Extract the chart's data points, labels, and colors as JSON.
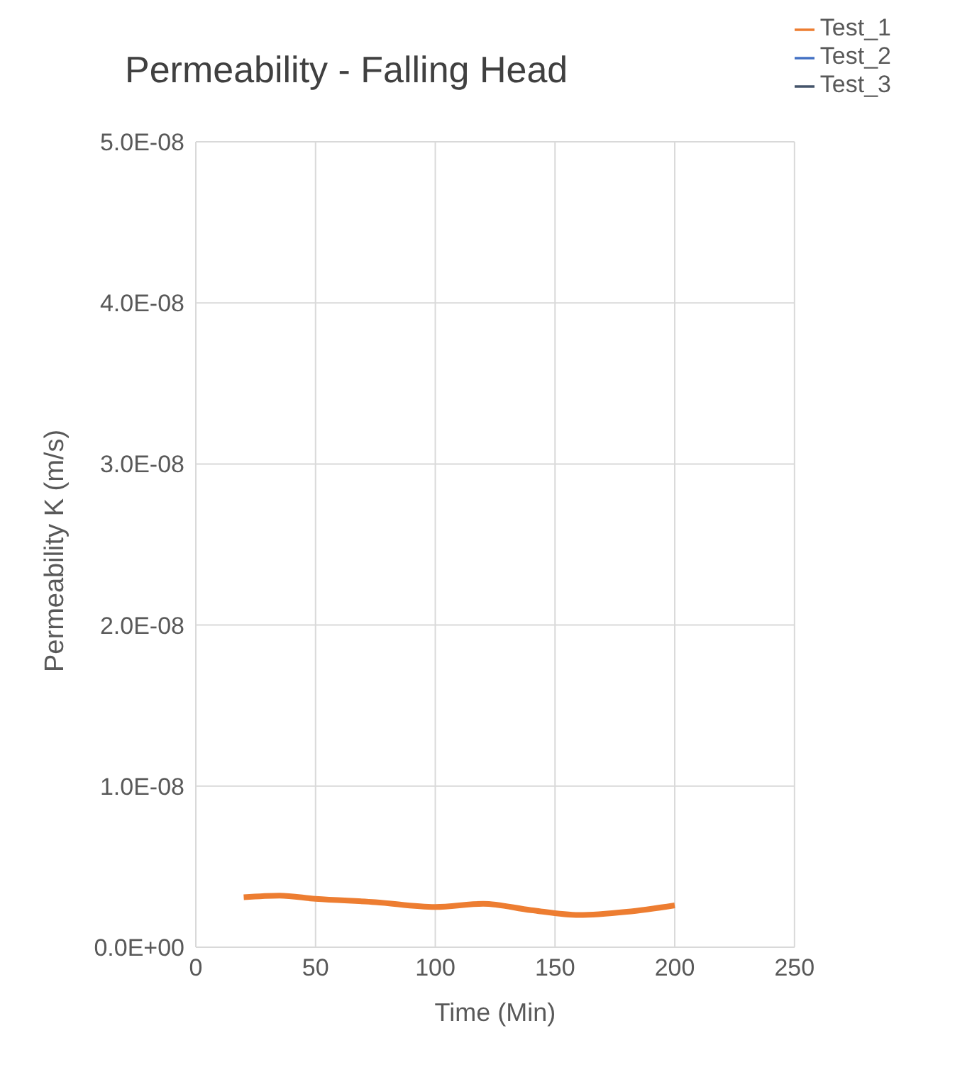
{
  "chart_data": {
    "type": "line",
    "title": "Permeability - Falling Head",
    "xlabel": "Time (Min)",
    "ylabel": "Permeability K (m/s)",
    "x": [
      20,
      35,
      50,
      75,
      100,
      120,
      140,
      160,
      180,
      200
    ],
    "series": [
      {
        "name": "Test_1",
        "color": "#ed7d31",
        "values": [
          3.1e-09,
          3.2e-09,
          3e-09,
          2.8e-09,
          2.5e-09,
          2.7e-09,
          2.3e-09,
          2e-09,
          2.2e-09,
          2.6e-09
        ]
      },
      {
        "name": "Test_2",
        "color": "#4472c4",
        "values": [
          null,
          null,
          null,
          null,
          null,
          null,
          null,
          null,
          null,
          null
        ]
      },
      {
        "name": "Test_3",
        "color": "#44546a",
        "values": [
          null,
          null,
          null,
          null,
          null,
          null,
          null,
          null,
          null,
          null
        ]
      }
    ],
    "xlim": [
      0,
      250
    ],
    "xticks": [
      0,
      50,
      100,
      150,
      200,
      250
    ],
    "ylim": [
      0,
      5e-08
    ],
    "yticks": [
      {
        "value": 0,
        "label": "0.0E+00"
      },
      {
        "value": 1e-08,
        "label": "1.0E-08"
      },
      {
        "value": 2e-08,
        "label": "2.0E-08"
      },
      {
        "value": 3e-08,
        "label": "3.0E-08"
      },
      {
        "value": 4e-08,
        "label": "4.0E-08"
      },
      {
        "value": 5e-08,
        "label": "5.0E-08"
      }
    ],
    "grid": true,
    "legend": "top right",
    "marker": "none",
    "line_style": "solid"
  }
}
